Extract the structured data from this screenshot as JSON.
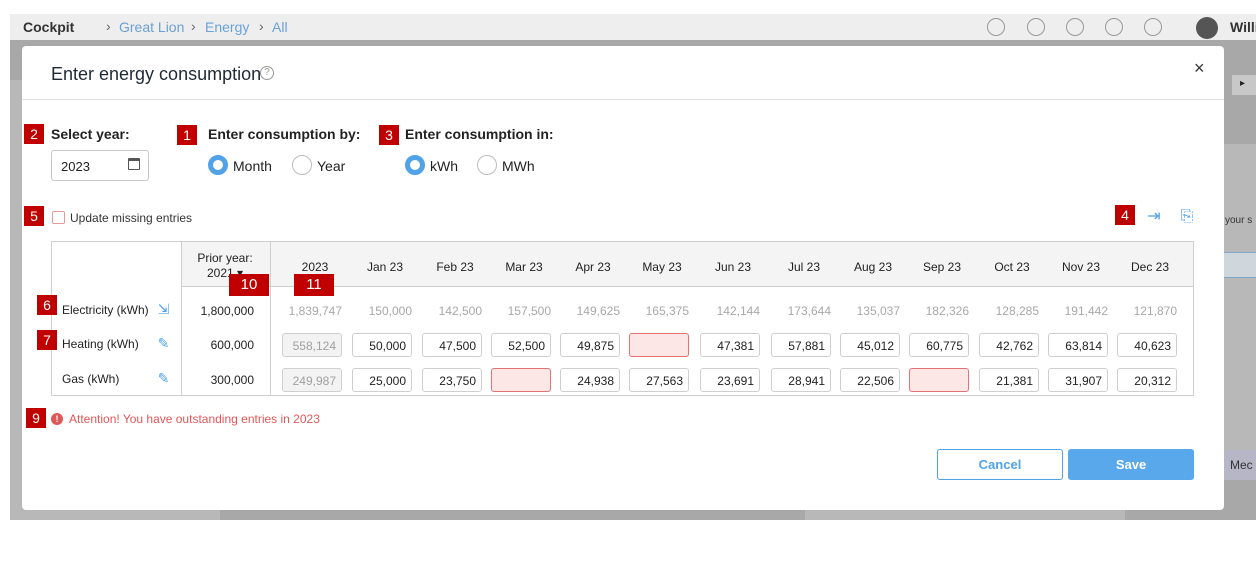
{
  "app": {
    "breadcrumb": {
      "home": "Cockpit",
      "items": [
        "Great Lion",
        "Energy",
        "All"
      ]
    },
    "user": "Willia",
    "bg_right_text": "your s",
    "bg_right_button": "Mec",
    "bg_arrow": "▸"
  },
  "dialog": {
    "title": "Enter energy consumption",
    "help_icon": "?",
    "close_icon": "×"
  },
  "markers": [
    "1",
    "2",
    "3",
    "4",
    "5",
    "6",
    "7",
    "9",
    "10",
    "11"
  ],
  "year": {
    "label": "Select year:",
    "value": "2023"
  },
  "consumption_by": {
    "label": "Enter consumption by:",
    "options": [
      "Month",
      "Year"
    ],
    "selected": "Month"
  },
  "consumption_in": {
    "label": "Enter consumption in:",
    "options": [
      "kWh",
      "MWh"
    ],
    "selected": "kWh"
  },
  "update_missing": {
    "label": "Update missing entries",
    "checked": false
  },
  "table": {
    "prior_year_header": "Prior year:",
    "prior_year_value": "2021 ▾",
    "columns": [
      "2023",
      "Jan 23",
      "Feb 23",
      "Mar 23",
      "Apr 23",
      "May 23",
      "Jun 23",
      "Jul 23",
      "Aug 23",
      "Sep 23",
      "Oct 23",
      "Nov 23",
      "Dec 23"
    ],
    "rows": [
      {
        "label": "Electricity (kWh)",
        "icon": "import-icon",
        "prior": "1,800,000",
        "readonly": true,
        "values": [
          "1,839,747",
          "150,000",
          "142,500",
          "157,500",
          "149,625",
          "165,375",
          "142,144",
          "173,644",
          "135,037",
          "182,326",
          "128,285",
          "191,442",
          "121,870"
        ]
      },
      {
        "label": "Heating (kWh)",
        "icon": "user-edit-icon",
        "prior": "600,000",
        "readonly": false,
        "values": [
          "558,124",
          "50,000",
          "47,500",
          "52,500",
          "49,875",
          "",
          "47,381",
          "57,881",
          "45,012",
          "60,775",
          "42,762",
          "63,814",
          "40,623"
        ]
      },
      {
        "label": "Gas (kWh)",
        "icon": "user-edit-icon",
        "prior": "300,000",
        "readonly": false,
        "values": [
          "249,987",
          "25,000",
          "23,750",
          "",
          "24,938",
          "27,563",
          "23,691",
          "28,941",
          "22,506",
          "",
          "21,381",
          "31,907",
          "20,312"
        ]
      }
    ]
  },
  "attention": {
    "text": "Attention! You have outstanding entries in 2023",
    "icon": "!"
  },
  "buttons": {
    "cancel": "Cancel",
    "save": "Save"
  },
  "colors": {
    "accent": "#52a2e7",
    "error": "#e05757",
    "marker": "#c00000"
  }
}
